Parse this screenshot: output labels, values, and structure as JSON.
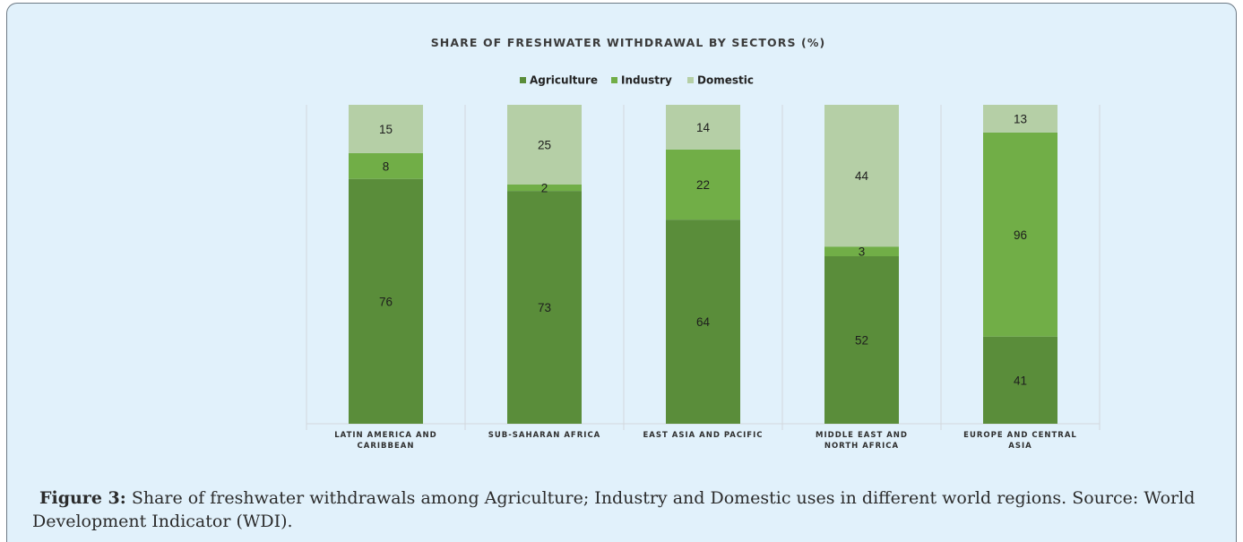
{
  "chart_data": {
    "type": "bar",
    "stacked": true,
    "title": "SHARE OF FRESHWATER WITHDRAWAL BY SECTORS (%)",
    "categories": [
      [
        "LATIN AMERICA AND",
        "CARIBBEAN"
      ],
      [
        "SUB-SAHARAN AFRICA"
      ],
      [
        "EAST ASIA AND PACIFIC"
      ],
      [
        "MIDDLE EAST AND",
        "NORTH AFRICA"
      ],
      [
        "EUROPE AND CENTRAL",
        "ASIA"
      ]
    ],
    "series": [
      {
        "name": "Agriculture",
        "color": "#5a8d3a",
        "values": [
          76,
          73,
          64,
          52,
          41
        ]
      },
      {
        "name": "Industry",
        "color": "#71ae47",
        "values": [
          8,
          2,
          22,
          3,
          96
        ]
      },
      {
        "name": "Domestic",
        "color": "#b5cfa6",
        "values": [
          15,
          25,
          14,
          44,
          13
        ]
      }
    ],
    "legend_position": "top-center",
    "grid": false,
    "axes_visible": false
  },
  "caption": {
    "label": "Figure 3:",
    "text": "Share of freshwater withdrawals among Agriculture; Industry and Domestic uses in different world regions. Source: World Development Indicator (WDI)."
  }
}
